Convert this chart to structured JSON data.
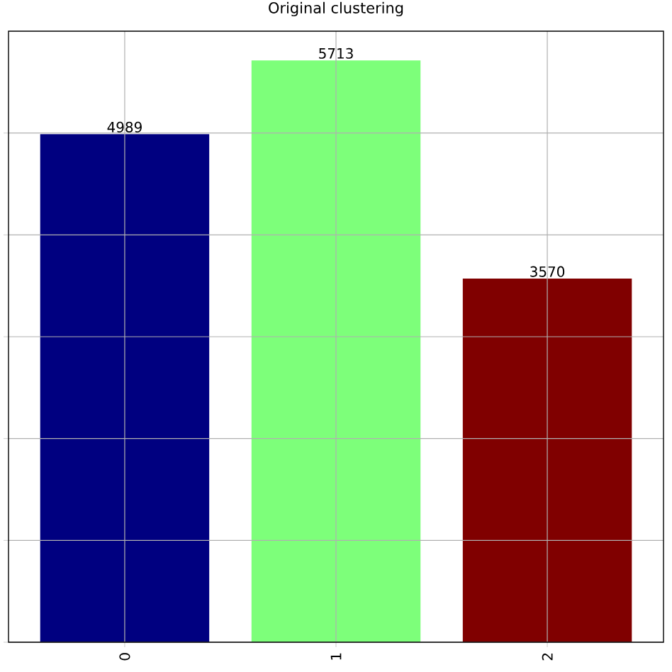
{
  "chart_data": {
    "type": "bar",
    "title": "Original clustering",
    "categories": [
      "0",
      "1",
      "2"
    ],
    "values": [
      4989,
      5713,
      3570
    ],
    "colors": [
      "#000080",
      "#7dff7a",
      "#800000"
    ],
    "ylim": [
      0,
      6000
    ],
    "yticks": [
      {
        "value": 0,
        "label": null
      },
      {
        "value": 1000,
        "label": null
      },
      {
        "value": 2000,
        "label": null
      },
      {
        "value": 3000,
        "label": null
      },
      {
        "value": 4000,
        "label": null
      },
      {
        "value": 5000,
        "label": null
      }
    ],
    "grid": true,
    "data_labels": true,
    "tick_labels": "x"
  }
}
